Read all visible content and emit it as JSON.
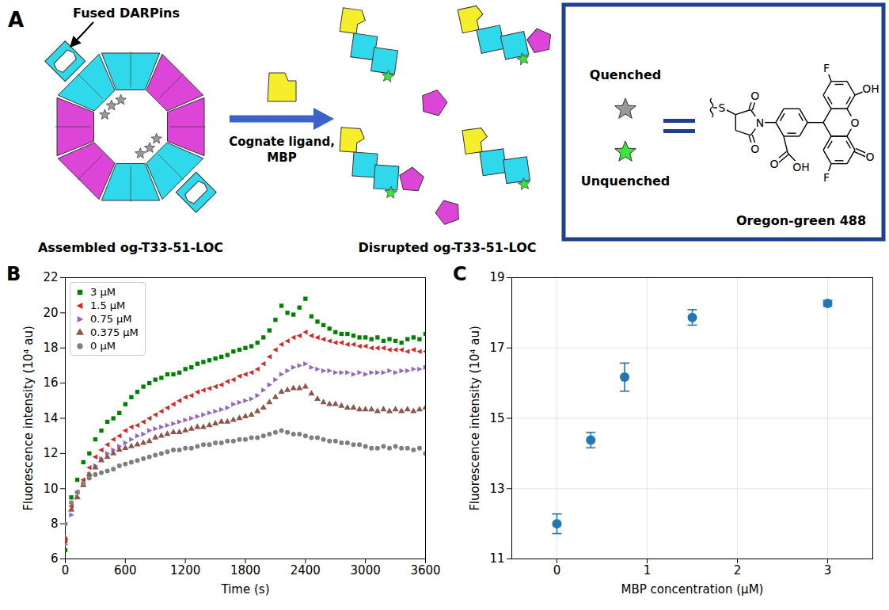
{
  "diagram": {
    "panel_label": "A",
    "callout": "Fused DARPins",
    "arrow_label": [
      "Cognate ligand,",
      "MBP"
    ],
    "assembled_label": "Assembled og-T33-51-LOC",
    "disrupted_label": "Disrupted og-T33-51-LOC",
    "key": {
      "quenched": "Quenched",
      "unquenched": "Unquenched",
      "dye_name": "Oregon-green 488",
      "dye_atoms": [
        "S",
        "O",
        "N",
        "O",
        "O",
        "O",
        "OH",
        "F",
        "OH",
        "F",
        "O"
      ]
    }
  },
  "chart_data": [
    {
      "panel_label": "B",
      "type": "scatter",
      "xlabel": "Time (s)",
      "ylabel": "Fluorescence intensity (10⁴ au)",
      "x": [
        0,
        60,
        120,
        180,
        240,
        300,
        360,
        420,
        480,
        540,
        600,
        660,
        720,
        780,
        840,
        900,
        960,
        1020,
        1080,
        1140,
        1200,
        1260,
        1320,
        1380,
        1440,
        1500,
        1560,
        1620,
        1680,
        1740,
        1800,
        1860,
        1920,
        1980,
        2040,
        2100,
        2160,
        2220,
        2280,
        2340,
        2400,
        2460,
        2520,
        2580,
        2640,
        2700,
        2760,
        2820,
        2880,
        2940,
        3000,
        3060,
        3120,
        3180,
        3240,
        3300,
        3360,
        3420,
        3480,
        3540,
        3600
      ],
      "series": [
        {
          "name": "3 μM",
          "color": "#008000",
          "marker": "square",
          "values": [
            6.5,
            9.5,
            10.5,
            11.5,
            12.0,
            12.8,
            13.3,
            13.8,
            14.0,
            14.3,
            14.8,
            15.2,
            15.5,
            15.8,
            16.0,
            16.2,
            16.3,
            16.5,
            16.5,
            16.6,
            16.8,
            16.9,
            17.1,
            17.2,
            17.3,
            17.4,
            17.5,
            17.6,
            17.8,
            17.9,
            18.0,
            18.1,
            18.3,
            18.6,
            19.0,
            19.6,
            20.4,
            20.0,
            19.9,
            20.3,
            20.8,
            19.8,
            19.5,
            19.3,
            19.1,
            18.9,
            18.8,
            18.8,
            18.7,
            18.6,
            18.6,
            18.5,
            18.6,
            18.4,
            18.5,
            18.4,
            18.3,
            18.5,
            18.6,
            18.5,
            18.8
          ]
        },
        {
          "name": "1.5 μM",
          "color": "#d62728",
          "marker": "triangle_left",
          "values": [
            7.0,
            9.0,
            9.8,
            10.5,
            11.2,
            11.8,
            12.2,
            12.5,
            12.8,
            13.0,
            13.3,
            13.5,
            13.6,
            13.8,
            14.0,
            14.2,
            14.4,
            14.6,
            14.8,
            15.0,
            15.2,
            15.3,
            15.5,
            15.6,
            15.7,
            15.8,
            15.9,
            16.1,
            16.2,
            16.4,
            16.5,
            16.6,
            16.8,
            17.1,
            17.5,
            17.9,
            18.2,
            18.4,
            18.6,
            18.7,
            18.9,
            18.7,
            18.6,
            18.5,
            18.4,
            18.3,
            18.3,
            18.2,
            18.2,
            18.1,
            18.1,
            18.0,
            18.0,
            18.0,
            17.9,
            17.9,
            17.9,
            17.8,
            17.9,
            17.8,
            17.8
          ]
        },
        {
          "name": "0.75 μM",
          "color": "#9467bd",
          "marker": "triangle_right",
          "values": [
            6.8,
            8.5,
            9.5,
            10.2,
            10.8,
            11.3,
            11.7,
            12.0,
            12.2,
            12.4,
            12.6,
            12.8,
            13.0,
            13.1,
            13.3,
            13.4,
            13.5,
            13.6,
            13.7,
            13.8,
            13.9,
            14.0,
            14.1,
            14.2,
            14.3,
            14.4,
            14.5,
            14.6,
            14.8,
            14.9,
            15.0,
            15.1,
            15.3,
            15.6,
            15.9,
            16.2,
            16.5,
            16.7,
            16.9,
            17.0,
            17.1,
            16.9,
            16.8,
            16.7,
            16.7,
            16.6,
            16.6,
            16.6,
            16.5,
            16.6,
            16.5,
            16.6,
            16.6,
            16.6,
            16.7,
            16.6,
            16.7,
            16.7,
            16.8,
            16.8,
            16.9
          ]
        },
        {
          "name": "0.375 μM",
          "color": "#8c564b",
          "marker": "triangle_up",
          "values": [
            7.2,
            8.8,
            9.5,
            10.2,
            10.8,
            11.2,
            11.6,
            11.8,
            12.0,
            12.2,
            12.3,
            12.4,
            12.5,
            12.6,
            12.7,
            12.9,
            13.0,
            13.1,
            13.2,
            13.2,
            13.3,
            13.4,
            13.5,
            13.5,
            13.6,
            13.7,
            13.8,
            13.8,
            13.9,
            14.0,
            14.1,
            14.2,
            14.4,
            14.6,
            14.9,
            15.2,
            15.5,
            15.6,
            15.7,
            15.7,
            15.8,
            15.4,
            15.1,
            14.9,
            14.8,
            14.8,
            14.7,
            14.6,
            14.6,
            14.5,
            14.5,
            14.5,
            14.4,
            14.5,
            14.4,
            14.5,
            14.4,
            14.5,
            14.4,
            14.5,
            14.6
          ]
        },
        {
          "name": "0 μM",
          "color": "#7f7f7f",
          "marker": "circle",
          "values": [
            8.0,
            9.2,
            9.8,
            10.3,
            10.6,
            10.8,
            10.9,
            11.0,
            11.1,
            11.3,
            11.4,
            11.5,
            11.6,
            11.7,
            11.8,
            11.9,
            12.0,
            12.1,
            12.2,
            12.2,
            12.3,
            12.3,
            12.4,
            12.5,
            12.5,
            12.6,
            12.6,
            12.7,
            12.7,
            12.8,
            12.8,
            12.9,
            12.9,
            13.0,
            13.1,
            13.2,
            13.3,
            13.2,
            13.1,
            13.1,
            13.0,
            12.9,
            12.9,
            12.8,
            12.7,
            12.7,
            12.6,
            12.6,
            12.5,
            12.5,
            12.4,
            12.3,
            12.3,
            12.4,
            12.3,
            12.4,
            12.3,
            12.3,
            12.2,
            12.3,
            12.0
          ]
        }
      ],
      "xlim": [
        0,
        3600
      ],
      "xticks": [
        0,
        600,
        1200,
        1800,
        2400,
        3000,
        3600
      ],
      "ylim": [
        6,
        22
      ],
      "yticks": [
        6,
        8,
        10,
        12,
        14,
        16,
        18,
        20,
        22
      ],
      "legend": "upper left",
      "grid": false
    },
    {
      "panel_label": "C",
      "type": "scatter",
      "xlabel": "MBP concentration (μM)",
      "ylabel": "Fluorescence intensity (10⁴ au)",
      "x": [
        0,
        0.375,
        0.75,
        1.5,
        3
      ],
      "values": [
        12.0,
        14.38,
        16.17,
        17.87,
        18.27
      ],
      "error": [
        0.28,
        0.22,
        0.4,
        0.22,
        0.08
      ],
      "color": "#1f77b4",
      "marker": "circle",
      "xlim": [
        -0.5,
        3.5
      ],
      "xticks": [
        0,
        1,
        2,
        3
      ],
      "ylim": [
        11,
        19
      ],
      "yticks": [
        11,
        13,
        15,
        17,
        19
      ],
      "grid": true
    }
  ]
}
